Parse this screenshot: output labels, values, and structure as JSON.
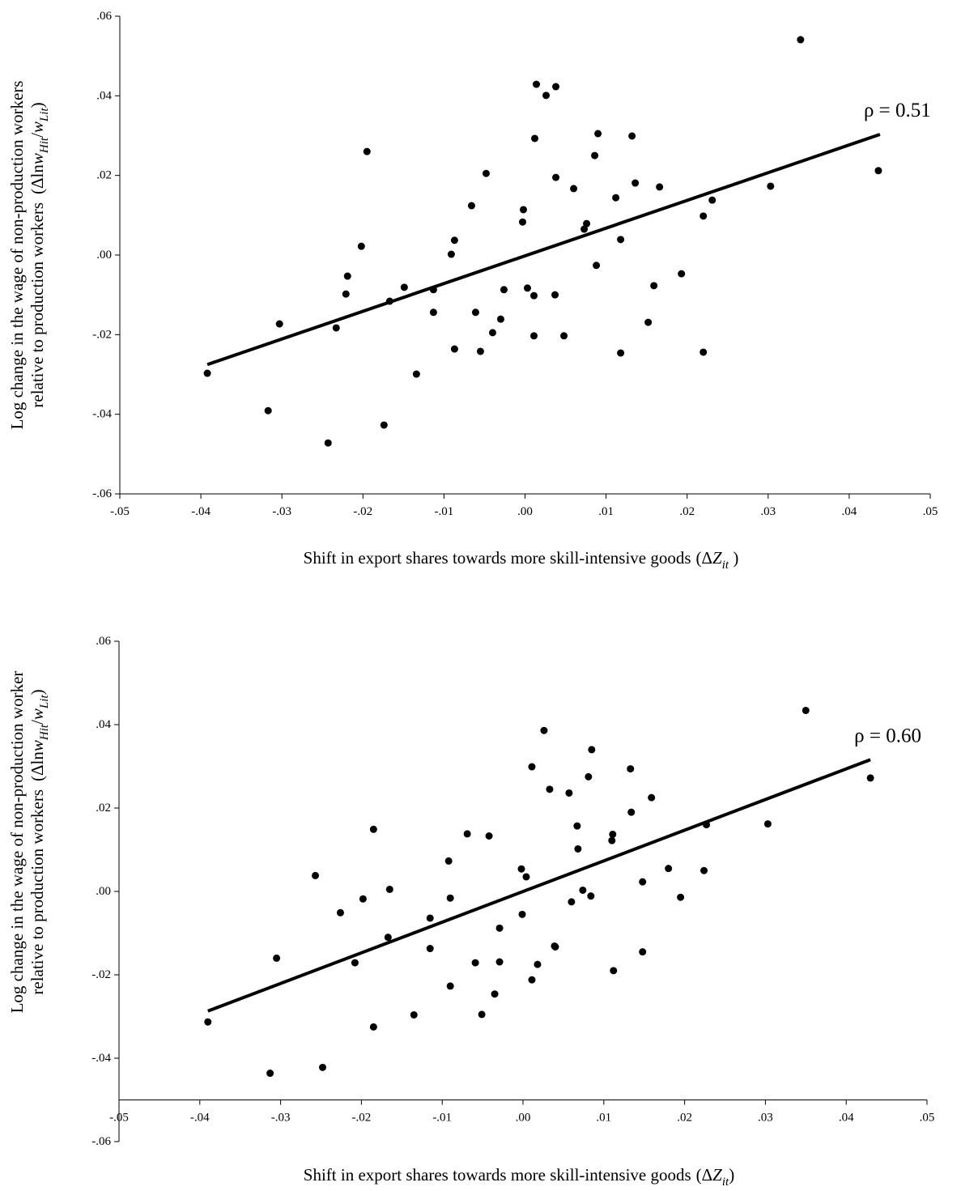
{
  "chart_data": [
    {
      "type": "scatter",
      "xlabel": "Shift in export shares towards more skill-intensive goods",
      "xlabel_math": [
        {
          "text": "(Δ"
        },
        {
          "text": "Z",
          "italic": true
        },
        {
          "text": "it",
          "italic": true,
          "sub": true
        },
        {
          "text": " )"
        }
      ],
      "ylabel": [
        "Log change in the wage of non-production workers",
        "relative to production workers"
      ],
      "ylabel_math": [
        {
          "text": "(Δln"
        },
        {
          "text": "w",
          "italic": true
        },
        {
          "text": "Hit",
          "italic": true,
          "sub": true
        },
        {
          "text": "/"
        },
        {
          "text": "w",
          "italic": true
        },
        {
          "text": "Lit",
          "italic": true,
          "sub": true
        },
        {
          "text": ")"
        }
      ],
      "annotation": "ρ = 0.51",
      "xlim": [
        -0.05,
        0.05
      ],
      "xticks": [
        {
          "value": -0.05,
          "label": "-.05"
        },
        {
          "value": -0.04,
          "label": "-.04"
        },
        {
          "value": -0.03,
          "label": "-.03"
        },
        {
          "value": -0.02,
          "label": "-.02"
        },
        {
          "value": -0.01,
          "label": "-.01"
        },
        {
          "value": 0,
          "label": ".00"
        },
        {
          "value": 0.01,
          "label": ".01"
        },
        {
          "value": 0.02,
          "label": ".02"
        },
        {
          "value": 0.03,
          "label": ".03"
        },
        {
          "value": 0.04,
          "label": ".04"
        },
        {
          "value": 0.05,
          "label": ".05"
        }
      ],
      "ylim": [
        -0.06,
        0.06
      ],
      "yticks": [
        {
          "value": -0.06,
          "label": "-.06"
        },
        {
          "value": -0.04,
          "label": "-.04"
        },
        {
          "value": -0.02,
          "label": "-.02"
        },
        {
          "value": 0,
          "label": ".00"
        },
        {
          "value": 0.02,
          "label": ".02"
        },
        {
          "value": 0.04,
          "label": ".04"
        },
        {
          "value": 0.06,
          "label": ".06"
        }
      ],
      "x_axis_at": -0.06,
      "x": [
        -0.0392,
        -0.0317,
        -0.0303,
        -0.0243,
        -0.0233,
        -0.0221,
        -0.0219,
        -0.0202,
        -0.0195,
        -0.0174,
        -0.0167,
        -0.0149,
        -0.0134,
        -0.0113,
        -0.0113,
        -0.0091,
        -0.0087,
        -0.0087,
        -0.0066,
        -0.0061,
        -0.0055,
        -0.0048,
        -0.004,
        -0.003,
        -0.0026,
        -0.0003,
        -0.0002,
        0.0003,
        0.0011,
        0.0011,
        0.0012,
        0.0014,
        0.0026,
        0.0037,
        0.0038,
        0.0038,
        0.0048,
        0.006,
        0.0073,
        0.0076,
        0.0086,
        0.0088,
        0.009,
        0.0112,
        0.0118,
        0.0118,
        0.0132,
        0.0136,
        0.0152,
        0.0159,
        0.0166,
        0.0193,
        0.022,
        0.022,
        0.0231,
        0.0303,
        0.034,
        0.0436
      ],
      "series": [
        {
          "color": "#000000",
          "values": [
            -0.0297,
            -0.0391,
            -0.0173,
            -0.0472,
            -0.0183,
            -0.0098,
            -0.0053,
            0.0022,
            0.026,
            -0.0427,
            -0.0116,
            -0.0081,
            -0.0299,
            -0.0087,
            -0.0144,
            0.0002,
            0.0037,
            -0.0236,
            0.0124,
            -0.0144,
            -0.0242,
            0.0205,
            -0.0195,
            -0.0161,
            -0.0087,
            0.0083,
            0.0114,
            -0.0083,
            -0.0102,
            -0.0203,
            0.0293,
            0.0429,
            0.0401,
            -0.01,
            0.0423,
            0.0195,
            -0.0203,
            0.0167,
            0.0065,
            0.0079,
            0.025,
            -0.0026,
            0.0305,
            0.0144,
            0.0039,
            -0.0246,
            0.0299,
            0.0181,
            -0.0169,
            -0.0077,
            0.0171,
            -0.0047,
            0.0098,
            -0.0244,
            0.0138,
            0.0173,
            0.0541,
            0.0212
          ]
        }
      ],
      "fit": {
        "color": "#000000",
        "x": [
          -0.0392,
          0.0438
        ],
        "values": [
          -0.0275,
          0.0303
        ]
      }
    },
    {
      "type": "scatter",
      "xlabel": "Shift in export shares towards more skill-intensive goods",
      "xlabel_math": [
        {
          "text": "(Δ"
        },
        {
          "text": "Z",
          "italic": true
        },
        {
          "text": "it",
          "italic": true,
          "sub": true
        },
        {
          "text": ")"
        }
      ],
      "ylabel": [
        "Log change in the wage of non-production worker",
        "relative to production workers"
      ],
      "ylabel_math": [
        {
          "text": "(Δln"
        },
        {
          "text": "w",
          "italic": true
        },
        {
          "text": "Hit",
          "italic": true,
          "sub": true
        },
        {
          "text": "/"
        },
        {
          "text": "w",
          "italic": true
        },
        {
          "text": "Lit",
          "italic": true,
          "sub": true
        },
        {
          "text": ")"
        }
      ],
      "annotation": "ρ = 0.60",
      "xlim": [
        -0.05,
        0.05
      ],
      "xticks": [
        {
          "value": -0.05,
          "label": "-.05"
        },
        {
          "value": -0.04,
          "label": "-.04"
        },
        {
          "value": -0.03,
          "label": "-.03"
        },
        {
          "value": -0.02,
          "label": "-.02"
        },
        {
          "value": -0.01,
          "label": "-.01"
        },
        {
          "value": 0,
          "label": ".00"
        },
        {
          "value": 0.01,
          "label": ".01"
        },
        {
          "value": 0.02,
          "label": ".02"
        },
        {
          "value": 0.03,
          "label": ".03"
        },
        {
          "value": 0.04,
          "label": ".04"
        },
        {
          "value": 0.05,
          "label": ".05"
        }
      ],
      "ylim": [
        -0.06,
        0.06
      ],
      "yticks": [
        {
          "value": -0.06,
          "label": "-.06"
        },
        {
          "value": -0.04,
          "label": "-.04"
        },
        {
          "value": -0.02,
          "label": "-.02"
        },
        {
          "value": 0,
          "label": ".00"
        },
        {
          "value": 0.02,
          "label": ".02"
        },
        {
          "value": 0.04,
          "label": ".04"
        },
        {
          "value": 0.06,
          "label": ".06"
        }
      ],
      "x_axis_at": -0.05,
      "x": [
        -0.039,
        -0.0313,
        -0.0305,
        -0.0257,
        -0.0248,
        -0.0226,
        -0.0208,
        -0.0198,
        -0.0185,
        -0.0185,
        -0.0167,
        -0.0165,
        -0.0135,
        -0.0115,
        -0.0115,
        -0.0092,
        -0.009,
        -0.009,
        -0.0069,
        -0.0059,
        -0.0051,
        -0.0042,
        -0.0035,
        -0.0029,
        -0.0029,
        -0.0002,
        -0.0001,
        0.0004,
        0.0011,
        0.0011,
        0.0018,
        0.0026,
        0.0033,
        0.0039,
        0.004,
        0.0057,
        0.006,
        0.0067,
        0.0068,
        0.0074,
        0.0081,
        0.0084,
        0.0085,
        0.011,
        0.0111,
        0.0112,
        0.0133,
        0.0134,
        0.0148,
        0.0148,
        0.0159,
        0.018,
        0.0195,
        0.0224,
        0.0227,
        0.0303,
        0.035,
        0.043
      ],
      "series": [
        {
          "color": "#000000",
          "values": [
            -0.0313,
            -0.0436,
            -0.016,
            0.0038,
            -0.0422,
            -0.0051,
            -0.0171,
            -0.0018,
            0.0149,
            -0.0325,
            -0.011,
            0.0005,
            -0.0296,
            -0.0064,
            -0.0137,
            0.0073,
            -0.0016,
            -0.0227,
            0.0138,
            -0.0171,
            -0.0295,
            0.0133,
            -0.0246,
            -0.0088,
            -0.0169,
            0.0054,
            -0.0055,
            0.0035,
            0.0299,
            -0.0212,
            -0.0175,
            0.0386,
            0.0245,
            -0.0131,
            -0.0133,
            0.0236,
            -0.0025,
            0.0157,
            0.0102,
            0.0003,
            0.0275,
            -0.0011,
            0.034,
            0.0122,
            0.0137,
            -0.019,
            0.0294,
            0.019,
            0.0023,
            -0.0145,
            0.0225,
            0.0055,
            -0.0014,
            0.005,
            0.016,
            0.0162,
            0.0434,
            0.0272
          ]
        }
      ],
      "fit": {
        "color": "#000000",
        "x": [
          -0.039,
          0.043
        ],
        "values": [
          -0.0287,
          0.0316
        ]
      }
    }
  ]
}
